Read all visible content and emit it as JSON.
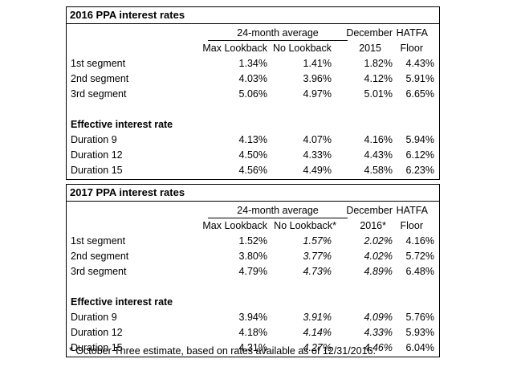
{
  "tables": [
    {
      "title": "2016 PPA interest rates",
      "headers": {
        "avg_group": "24-month average",
        "max_lookback": "Max Lookback",
        "no_lookback": "No Lookback",
        "december_top": "December",
        "december_bottom": "2015",
        "hatfa_top": "HATFA",
        "hatfa_bottom": "Floor"
      },
      "segments": [
        {
          "label": "1st segment",
          "max": "1.34%",
          "no": "1.41%",
          "dec": "1.82%",
          "hatfa": "4.43%"
        },
        {
          "label": "2nd segment",
          "max": "4.03%",
          "no": "3.96%",
          "dec": "4.12%",
          "hatfa": "5.91%"
        },
        {
          "label": "3rd segment",
          "max": "5.06%",
          "no": "4.97%",
          "dec": "5.01%",
          "hatfa": "6.65%"
        }
      ],
      "effective_label": "Effective interest rate",
      "durations": [
        {
          "label": "Duration 9",
          "max": "4.13%",
          "no": "4.07%",
          "dec": "4.16%",
          "hatfa": "5.94%"
        },
        {
          "label": "Duration 12",
          "max": "4.50%",
          "no": "4.33%",
          "dec": "4.43%",
          "hatfa": "6.12%"
        },
        {
          "label": "Duration 15",
          "max": "4.56%",
          "no": "4.49%",
          "dec": "4.58%",
          "hatfa": "6.23%"
        }
      ]
    },
    {
      "title": "2017 PPA interest rates",
      "headers": {
        "avg_group": "24-month average",
        "max_lookback": "Max Lookback",
        "no_lookback": "No Lookback*",
        "december_top": "December",
        "december_bottom": "2016*",
        "hatfa_top": "HATFA",
        "hatfa_bottom": "Floor"
      },
      "segments": [
        {
          "label": "1st segment",
          "max": "1.52%",
          "no": "1.57%",
          "dec": "2.02%",
          "hatfa": "4.16%"
        },
        {
          "label": "2nd segment",
          "max": "3.80%",
          "no": "3.77%",
          "dec": "4.02%",
          "hatfa": "5.72%"
        },
        {
          "label": "3rd segment",
          "max": "4.79%",
          "no": "4.73%",
          "dec": "4.89%",
          "hatfa": "6.48%"
        }
      ],
      "effective_label": "Effective interest rate",
      "durations": [
        {
          "label": "Duration 9",
          "max": "3.94%",
          "no": "3.91%",
          "dec": "4.09%",
          "hatfa": "5.76%"
        },
        {
          "label": "Duration 12",
          "max": "4.18%",
          "no": "4.14%",
          "dec": "4.33%",
          "hatfa": "5.93%"
        },
        {
          "label": "Duration 15",
          "max": "4.31%",
          "no": "4.27%",
          "dec": "4.46%",
          "hatfa": "6.04%"
        }
      ]
    }
  ],
  "footnote": "* October Three estimate, based on rates available as of 12/31/2016."
}
